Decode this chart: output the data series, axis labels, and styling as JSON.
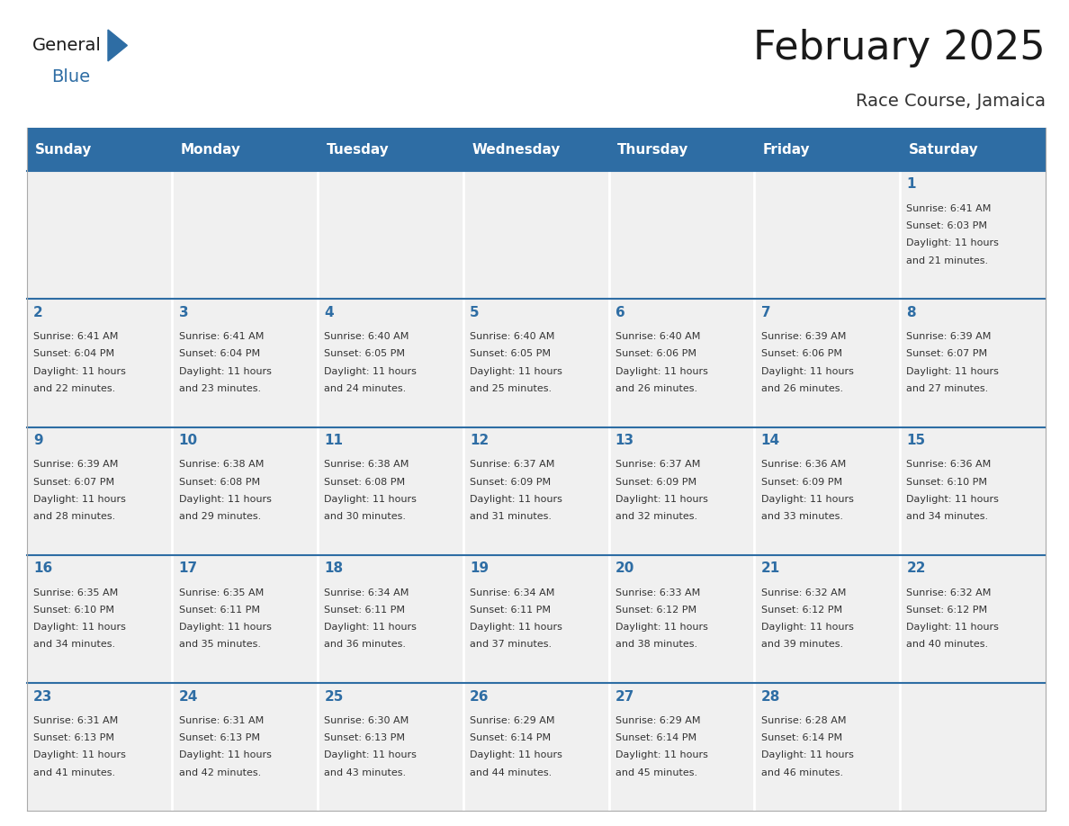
{
  "title": "February 2025",
  "subtitle": "Race Course, Jamaica",
  "header_bg": "#2E6DA4",
  "header_text_color": "#FFFFFF",
  "header_days": [
    "Sunday",
    "Monday",
    "Tuesday",
    "Wednesday",
    "Thursday",
    "Friday",
    "Saturday"
  ],
  "cell_bg": "#F0F0F0",
  "row_line_color": "#2E6DA4",
  "col_line_color": "#FFFFFF",
  "outer_line_color": "#AAAAAA",
  "day_number_color": "#2E6DA4",
  "info_color": "#333333",
  "title_color": "#1a1a1a",
  "subtitle_color": "#333333",
  "logo_general_color": "#1a1a1a",
  "logo_blue_color": "#2E6DA4",
  "calendar": [
    [
      null,
      null,
      null,
      null,
      null,
      null,
      {
        "day": 1,
        "sunrise": "6:41 AM",
        "sunset": "6:03 PM",
        "daylight": "11 hours and 21 minutes."
      }
    ],
    [
      {
        "day": 2,
        "sunrise": "6:41 AM",
        "sunset": "6:04 PM",
        "daylight": "11 hours and 22 minutes."
      },
      {
        "day": 3,
        "sunrise": "6:41 AM",
        "sunset": "6:04 PM",
        "daylight": "11 hours and 23 minutes."
      },
      {
        "day": 4,
        "sunrise": "6:40 AM",
        "sunset": "6:05 PM",
        "daylight": "11 hours and 24 minutes."
      },
      {
        "day": 5,
        "sunrise": "6:40 AM",
        "sunset": "6:05 PM",
        "daylight": "11 hours and 25 minutes."
      },
      {
        "day": 6,
        "sunrise": "6:40 AM",
        "sunset": "6:06 PM",
        "daylight": "11 hours and 26 minutes."
      },
      {
        "day": 7,
        "sunrise": "6:39 AM",
        "sunset": "6:06 PM",
        "daylight": "11 hours and 26 minutes."
      },
      {
        "day": 8,
        "sunrise": "6:39 AM",
        "sunset": "6:07 PM",
        "daylight": "11 hours and 27 minutes."
      }
    ],
    [
      {
        "day": 9,
        "sunrise": "6:39 AM",
        "sunset": "6:07 PM",
        "daylight": "11 hours and 28 minutes."
      },
      {
        "day": 10,
        "sunrise": "6:38 AM",
        "sunset": "6:08 PM",
        "daylight": "11 hours and 29 minutes."
      },
      {
        "day": 11,
        "sunrise": "6:38 AM",
        "sunset": "6:08 PM",
        "daylight": "11 hours and 30 minutes."
      },
      {
        "day": 12,
        "sunrise": "6:37 AM",
        "sunset": "6:09 PM",
        "daylight": "11 hours and 31 minutes."
      },
      {
        "day": 13,
        "sunrise": "6:37 AM",
        "sunset": "6:09 PM",
        "daylight": "11 hours and 32 minutes."
      },
      {
        "day": 14,
        "sunrise": "6:36 AM",
        "sunset": "6:09 PM",
        "daylight": "11 hours and 33 minutes."
      },
      {
        "day": 15,
        "sunrise": "6:36 AM",
        "sunset": "6:10 PM",
        "daylight": "11 hours and 34 minutes."
      }
    ],
    [
      {
        "day": 16,
        "sunrise": "6:35 AM",
        "sunset": "6:10 PM",
        "daylight": "11 hours and 34 minutes."
      },
      {
        "day": 17,
        "sunrise": "6:35 AM",
        "sunset": "6:11 PM",
        "daylight": "11 hours and 35 minutes."
      },
      {
        "day": 18,
        "sunrise": "6:34 AM",
        "sunset": "6:11 PM",
        "daylight": "11 hours and 36 minutes."
      },
      {
        "day": 19,
        "sunrise": "6:34 AM",
        "sunset": "6:11 PM",
        "daylight": "11 hours and 37 minutes."
      },
      {
        "day": 20,
        "sunrise": "6:33 AM",
        "sunset": "6:12 PM",
        "daylight": "11 hours and 38 minutes."
      },
      {
        "day": 21,
        "sunrise": "6:32 AM",
        "sunset": "6:12 PM",
        "daylight": "11 hours and 39 minutes."
      },
      {
        "day": 22,
        "sunrise": "6:32 AM",
        "sunset": "6:12 PM",
        "daylight": "11 hours and 40 minutes."
      }
    ],
    [
      {
        "day": 23,
        "sunrise": "6:31 AM",
        "sunset": "6:13 PM",
        "daylight": "11 hours and 41 minutes."
      },
      {
        "day": 24,
        "sunrise": "6:31 AM",
        "sunset": "6:13 PM",
        "daylight": "11 hours and 42 minutes."
      },
      {
        "day": 25,
        "sunrise": "6:30 AM",
        "sunset": "6:13 PM",
        "daylight": "11 hours and 43 minutes."
      },
      {
        "day": 26,
        "sunrise": "6:29 AM",
        "sunset": "6:14 PM",
        "daylight": "11 hours and 44 minutes."
      },
      {
        "day": 27,
        "sunrise": "6:29 AM",
        "sunset": "6:14 PM",
        "daylight": "11 hours and 45 minutes."
      },
      {
        "day": 28,
        "sunrise": "6:28 AM",
        "sunset": "6:14 PM",
        "daylight": "11 hours and 46 minutes."
      },
      null
    ]
  ],
  "num_weeks": 5,
  "fig_width": 11.88,
  "fig_height": 9.18
}
